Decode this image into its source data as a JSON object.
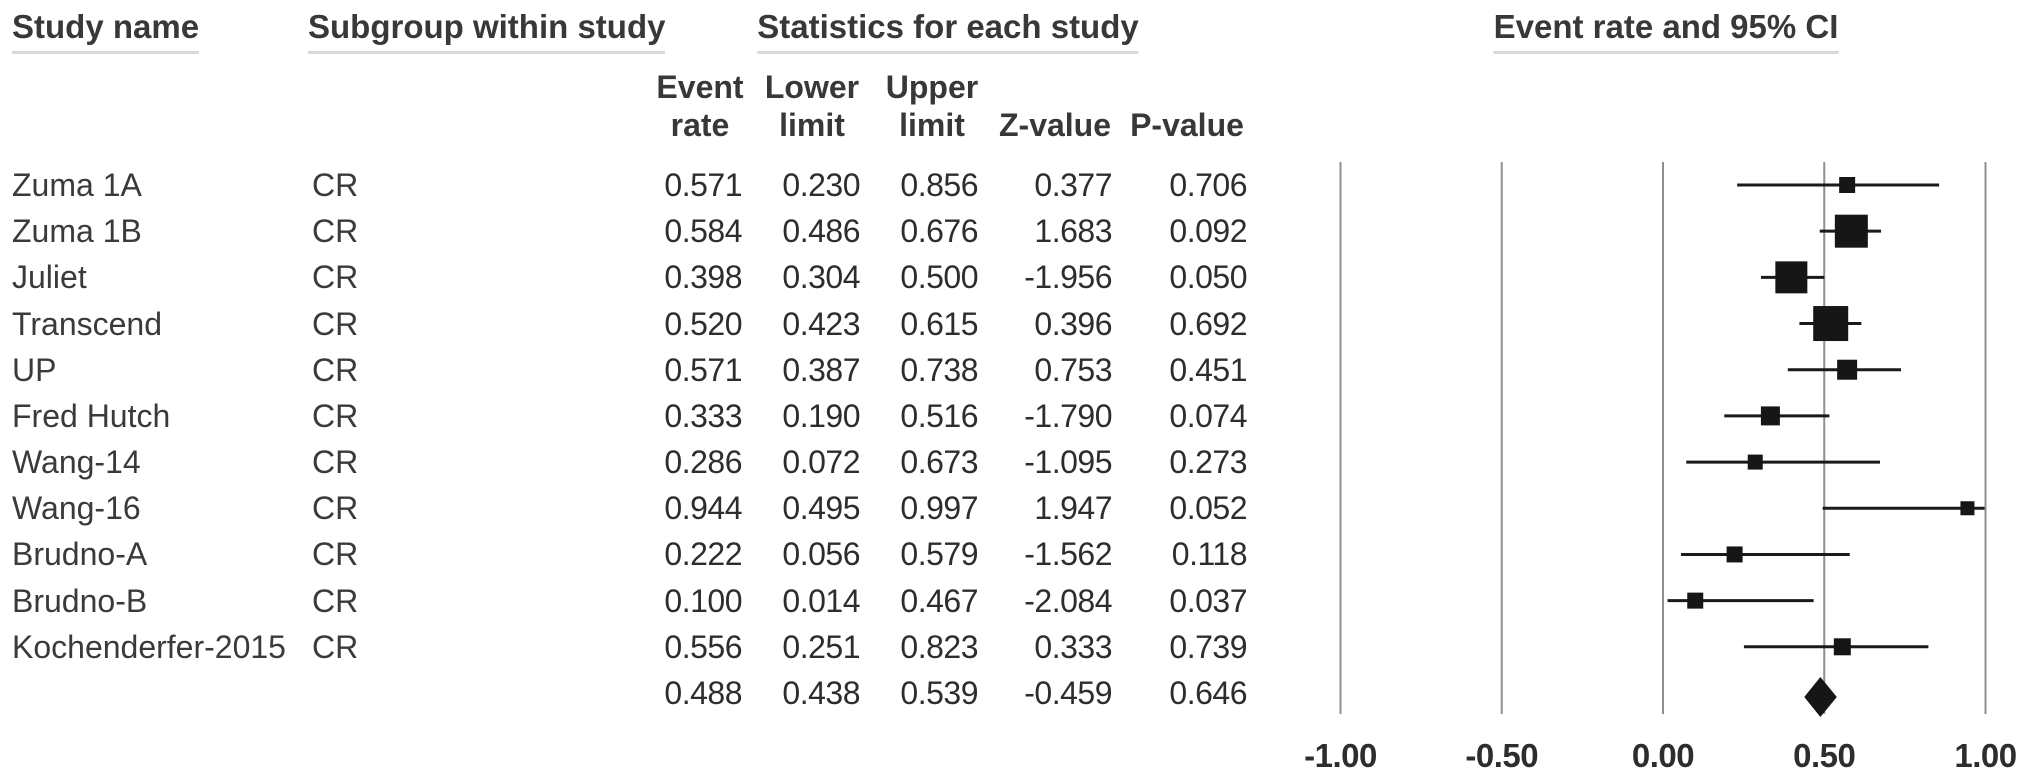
{
  "headers": {
    "study_name": "Study name",
    "subgroup": "Subgroup within study",
    "statistics": "Statistics for each study",
    "plot": "Event rate and 95% CI"
  },
  "stat_headers": {
    "event_line1": "Event",
    "event_line2": "rate",
    "lower_line1": "Lower",
    "lower_line2": "limit",
    "upper_line1": "Upper",
    "upper_line2": "limit",
    "z": "Z-value",
    "p": "P-value"
  },
  "colors": {
    "marker": "#161616",
    "ci_line": "#1a1a1a",
    "gridline": "#8f8f8f",
    "header_underline": "#d9d9d9"
  },
  "chart_data": {
    "type": "forest",
    "title": "Event rate and 95% CI",
    "x_axis": {
      "range": [
        -1.0,
        1.0
      ],
      "ticks": [
        -1.0,
        -0.5,
        0.0,
        0.5,
        1.0
      ],
      "tick_labels": [
        "-1.00",
        "-0.50",
        "0.00",
        "0.50",
        "1.00"
      ],
      "gridlines": true
    },
    "studies": [
      {
        "study": "Zuma 1A",
        "subgroup": "CR",
        "event_rate": "0.571",
        "lower": "0.230",
        "upper": "0.856",
        "z": "0.377",
        "p": "0.706",
        "marker_size": 16
      },
      {
        "study": "Zuma 1B",
        "subgroup": "CR",
        "event_rate": "0.584",
        "lower": "0.486",
        "upper": "0.676",
        "z": "1.683",
        "p": "0.092",
        "marker_size": 33
      },
      {
        "study": "Juliet",
        "subgroup": "CR",
        "event_rate": "0.398",
        "lower": "0.304",
        "upper": "0.500",
        "z": "-1.956",
        "p": "0.050",
        "marker_size": 32
      },
      {
        "study": "Transcend",
        "subgroup": "CR",
        "event_rate": "0.520",
        "lower": "0.423",
        "upper": "0.615",
        "z": "0.396",
        "p": "0.692",
        "marker_size": 35
      },
      {
        "study": "UP",
        "subgroup": "CR",
        "event_rate": "0.571",
        "lower": "0.387",
        "upper": "0.738",
        "z": "0.753",
        "p": "0.451",
        "marker_size": 20
      },
      {
        "study": "Fred Hutch",
        "subgroup": "CR",
        "event_rate": "0.333",
        "lower": "0.190",
        "upper": "0.516",
        "z": "-1.790",
        "p": "0.074",
        "marker_size": 19
      },
      {
        "study": "Wang-14",
        "subgroup": "CR",
        "event_rate": "0.286",
        "lower": "0.072",
        "upper": "0.673",
        "z": "-1.095",
        "p": "0.273",
        "marker_size": 15
      },
      {
        "study": "Wang-16",
        "subgroup": "CR",
        "event_rate": "0.944",
        "lower": "0.495",
        "upper": "0.997",
        "z": "1.947",
        "p": "0.052",
        "marker_size": 14
      },
      {
        "study": "Brudno-A",
        "subgroup": "CR",
        "event_rate": "0.222",
        "lower": "0.056",
        "upper": "0.579",
        "z": "-1.562",
        "p": "0.118",
        "marker_size": 16
      },
      {
        "study": "Brudno-B",
        "subgroup": "CR",
        "event_rate": "0.100",
        "lower": "0.014",
        "upper": "0.467",
        "z": "-2.084",
        "p": "0.037",
        "marker_size": 16
      },
      {
        "study": "Kochenderfer-2015",
        "subgroup": "CR",
        "event_rate": "0.556",
        "lower": "0.251",
        "upper": "0.823",
        "z": "0.333",
        "p": "0.739",
        "marker_size": 17
      }
    ],
    "summary": {
      "event_rate": "0.488",
      "lower": "0.438",
      "upper": "0.539",
      "z": "-0.459",
      "p": "0.646"
    }
  }
}
